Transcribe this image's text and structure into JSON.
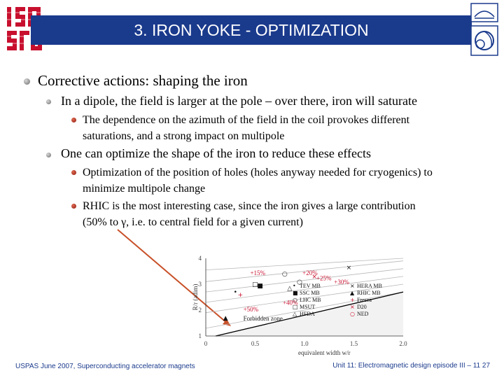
{
  "slide": {
    "title": "3. IRON YOKE - OPTIMIZATION",
    "logo_left_text": "USPAS",
    "bullets": {
      "b1": "Corrective actions: shaping the iron",
      "b1_1": "In a dipole, the field is larger at the pole – over there, iron will saturate",
      "b1_1_1_line1": "The dependence on the azimuth of the field in the coil provokes different",
      "b1_1_1_line2": "saturations, and a strong impact on multipole",
      "b1_2": "One can optimize the shape of the iron to reduce these effects",
      "b1_2_1_line1": "Optimization of the position of holes (holes anyway needed for cryogenics) to",
      "b1_2_1_line2": "minimize multipole change",
      "b1_2_2_line1": "RHIC is the most interesting case, since the iron gives a large contribution",
      "b1_2_2_line2": "(50% to γ, i.e. to central field for a given current)"
    },
    "footer_left": "USPAS June 2007, Superconducting accelerator magnets",
    "footer_right": "Unit 11: Electromagnetic design episode III – 11 27",
    "colors": {
      "title_bar": "#1a3a8c",
      "logo_red": "#c8102e",
      "arrow": "#c85028"
    }
  },
  "chart_data": {
    "type": "scatter",
    "xlabel": "equivalent width w/r",
    "ylabel": "R/r (adim)",
    "xlim": [
      0,
      2.0
    ],
    "ylim": [
      1,
      4
    ],
    "xticks": [
      "0",
      "0.5",
      "1.0",
      "1.5",
      "2.0"
    ],
    "yticks": [
      "1",
      "2",
      "3",
      "4"
    ],
    "region_label": "Forbidden zone",
    "line_labels": [
      "+15%",
      "+20%",
      "+25%",
      "+30%",
      "+40%",
      "+50%"
    ],
    "legend": [
      "TEV MB",
      "SSC MB",
      "LHC MB",
      "MSUT",
      "HFDA",
      "HERA MB",
      "RHIC MB",
      "Fresca",
      "D20",
      "NED"
    ],
    "legend_symbols": [
      "•",
      "■",
      "○",
      "□",
      "△",
      "×",
      "▲",
      "+",
      "×",
      "○"
    ],
    "series": [
      {
        "name": "TEV MB",
        "x": [
          0.3
        ],
        "y": [
          2.7
        ]
      },
      {
        "name": "SSC MB",
        "x": [
          0.55
        ],
        "y": [
          2.95
        ]
      },
      {
        "name": "LHC MB",
        "x": [
          0.8
        ],
        "y": [
          3.4
        ]
      },
      {
        "name": "MSUT",
        "x": [
          0.5
        ],
        "y": [
          3.0
        ]
      },
      {
        "name": "HFDA",
        "x": [
          0.85
        ],
        "y": [
          2.85
        ]
      },
      {
        "name": "HERA MB",
        "x": [
          1.45
        ],
        "y": [
          3.65
        ]
      },
      {
        "name": "RHIC MB",
        "x": [
          0.2
        ],
        "y": [
          1.7
        ]
      },
      {
        "name": "Fresca",
        "x": [
          0.35
        ],
        "y": [
          2.6
        ]
      },
      {
        "name": "D20",
        "x": [
          1.1
        ],
        "y": [
          3.3
        ]
      },
      {
        "name": "NED",
        "x": [
          0.95
        ],
        "y": [
          3.1
        ]
      }
    ]
  }
}
